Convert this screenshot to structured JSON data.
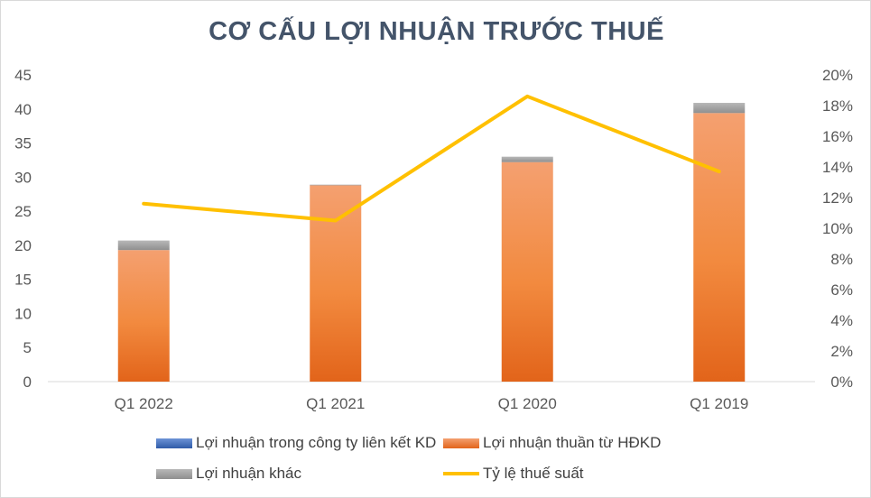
{
  "chart_data": {
    "type": "bar",
    "title": "CƠ CẤU LỢI NHUẬN TRƯỚC THUẾ",
    "categories": [
      "Q1 2022",
      "Q1 2021",
      "Q1 2020",
      "Q1 2019"
    ],
    "series": [
      {
        "name": "Lợi nhuận trong công ty liên kết KD",
        "values": [
          0,
          0,
          0,
          0
        ],
        "color": "#4472c4",
        "kind": "bar",
        "axis": "left"
      },
      {
        "name": "Lợi nhuận thuần từ HĐKD",
        "values": [
          19.3,
          28.8,
          32.2,
          39.4
        ],
        "color": "#ed7d31",
        "kind": "bar",
        "axis": "left"
      },
      {
        "name": "Lợi nhuận khác",
        "values": [
          1.4,
          0.1,
          0.8,
          1.5
        ],
        "color": "#a5a5a5",
        "kind": "bar",
        "axis": "left"
      },
      {
        "name": "Tỷ lệ thuế suất",
        "values": [
          11.6,
          10.5,
          18.6,
          13.7
        ],
        "color": "#ffc000",
        "kind": "line",
        "axis": "right"
      }
    ],
    "stacked": true,
    "ylim": [
      0,
      45
    ],
    "yticks": [
      "0",
      "5",
      "10",
      "15",
      "20",
      "25",
      "30",
      "35",
      "40",
      "45"
    ],
    "y2lim": [
      0,
      20
    ],
    "y2ticks": [
      "0%",
      "2%",
      "4%",
      "6%",
      "8%",
      "10%",
      "12%",
      "14%",
      "16%",
      "18%",
      "20%"
    ],
    "legend_position": "bottom",
    "grid": false
  }
}
